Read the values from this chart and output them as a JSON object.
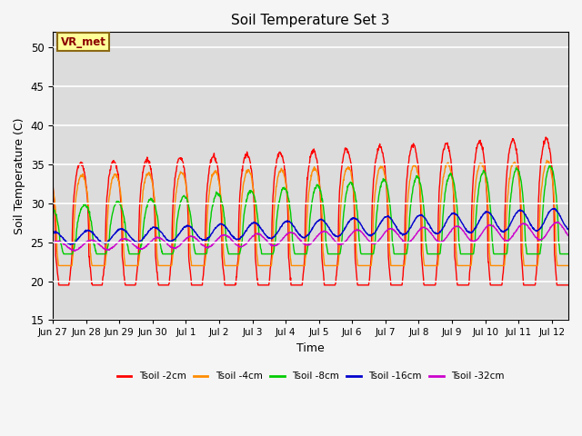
{
  "title": "Soil Temperature Set 3",
  "xlabel": "Time",
  "ylabel": "Soil Temperature (C)",
  "ylim": [
    15,
    52
  ],
  "yticks": [
    15,
    20,
    25,
    30,
    35,
    40,
    45,
    50
  ],
  "annotation_text": "VR_met",
  "annotation_color": "#8B0000",
  "annotation_bg": "#FFFF99",
  "annotation_border": "#8B6914",
  "series_names": [
    "Tsoil -2cm",
    "Tsoil -4cm",
    "Tsoil -8cm",
    "Tsoil -16cm",
    "Tsoil -32cm"
  ],
  "series_colors": [
    "#FF0000",
    "#FF8C00",
    "#00CC00",
    "#0000CD",
    "#CC00CC"
  ],
  "linewidth": 1.0,
  "n_days": 15.5,
  "points_per_day": 96,
  "base_temp": 25.0,
  "plot_bg": "#DCDCDC",
  "fig_bg": "#F5F5F5",
  "grid_color": "#FFFFFF",
  "xtick_labels": [
    "Jun 27",
    "Jun 28",
    "Jun 29",
    "Jun 30",
    "Jul 1",
    "Jul 2",
    "Jul 3",
    "Jul 4",
    "Jul 5",
    "Jul 6",
    "Jul 7",
    "Jul 8",
    "Jul 9",
    "Jul 10",
    "Jul 11",
    "Jul 12"
  ],
  "xtick_positions": [
    0,
    1,
    2,
    3,
    4,
    5,
    6,
    7,
    8,
    9,
    10,
    11,
    12,
    13,
    14,
    15
  ]
}
